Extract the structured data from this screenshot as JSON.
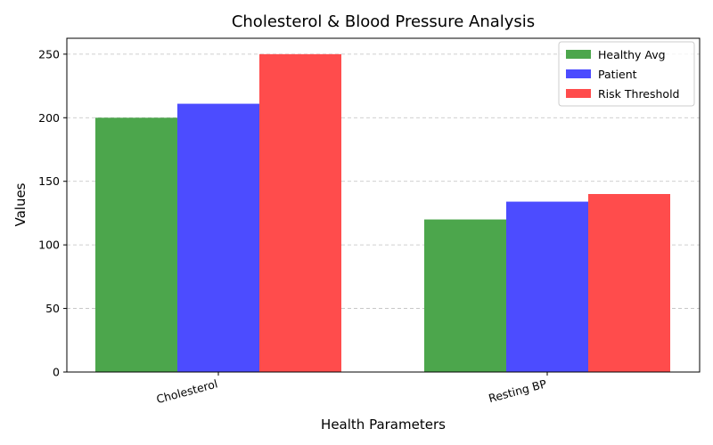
{
  "chart_data": {
    "type": "bar",
    "title": "Cholesterol & Blood Pressure Analysis",
    "xlabel": "Health Parameters",
    "ylabel": "Values",
    "categories": [
      "Cholesterol",
      "Resting BP"
    ],
    "series": [
      {
        "name": "Healthy Avg",
        "values": [
          200,
          120
        ],
        "color": "#4ca64c"
      },
      {
        "name": "Patient",
        "values": [
          211,
          134
        ],
        "color": "#4c4cff"
      },
      {
        "name": "Risk Threshold",
        "values": [
          250,
          140
        ],
        "color": "#ff4c4c"
      }
    ],
    "ylim": [
      0,
      262.5
    ],
    "yticks": [
      "0",
      "50",
      "100",
      "150",
      "200",
      "250"
    ],
    "grid": "y-dashed",
    "legend_position": "top-right",
    "xtick_rotation": "rotated"
  }
}
